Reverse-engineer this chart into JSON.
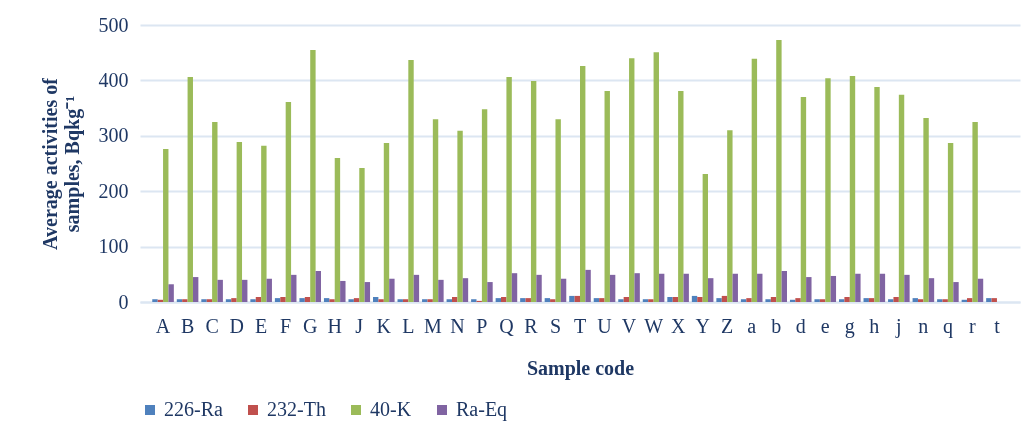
{
  "chart_data": {
    "type": "bar",
    "xlabel": "Sample code",
    "ylabel": "Average activities of samples, Bqkg⁻¹",
    "categories": [
      "A",
      "B",
      "C",
      "D",
      "E",
      "F",
      "G",
      "H",
      "J",
      "K",
      "L",
      "M",
      "N",
      "P",
      "Q",
      "R",
      "S",
      "T",
      "U",
      "V",
      "W",
      "X",
      "Y",
      "Z",
      "a",
      "b",
      "d",
      "e",
      "g",
      "h",
      "j",
      "n",
      "q",
      "r",
      "t"
    ],
    "series": [
      {
        "name": "226-Ra",
        "color": "#4f81bd",
        "values": [
          5,
          5,
          5,
          5,
          5,
          7,
          7,
          7,
          5,
          9,
          5,
          5,
          5,
          5,
          7,
          7,
          7,
          11,
          7,
          5,
          5,
          9,
          11,
          7,
          5,
          5,
          4,
          5,
          5,
          7,
          5,
          7,
          5,
          4,
          7
        ]
      },
      {
        "name": "232-Th",
        "color": "#c0504d",
        "values": [
          4,
          5,
          5,
          7,
          9,
          9,
          9,
          5,
          7,
          5,
          5,
          5,
          9,
          2,
          9,
          7,
          5,
          11,
          7,
          9,
          5,
          9,
          9,
          11,
          7,
          9,
          7,
          5,
          9,
          7,
          9,
          5,
          5,
          7,
          7
        ]
      },
      {
        "name": "40-K",
        "color": "#9bbb59",
        "values": [
          276,
          406,
          325,
          289,
          282,
          361,
          455,
          260,
          242,
          287,
          437,
          330,
          309,
          348,
          406,
          399,
          330,
          426,
          381,
          440,
          451,
          381,
          231,
          310,
          439,
          473,
          370,
          404,
          408,
          388,
          374,
          332,
          287,
          325,
          null
        ]
      },
      {
        "name": "Ra-Eq",
        "color": "#8064a2",
        "values": [
          32,
          45,
          40,
          40,
          42,
          49,
          56,
          38,
          36,
          42,
          49,
          40,
          43,
          36,
          52,
          49,
          42,
          58,
          49,
          52,
          51,
          51,
          43,
          51,
          51,
          56,
          45,
          47,
          51,
          51,
          49,
          43,
          36,
          42,
          null
        ]
      }
    ],
    "ylim": [
      0,
      500
    ],
    "yticks": [
      0,
      100,
      200,
      300,
      400,
      500
    ],
    "grid": "y",
    "legend": "bottom"
  }
}
